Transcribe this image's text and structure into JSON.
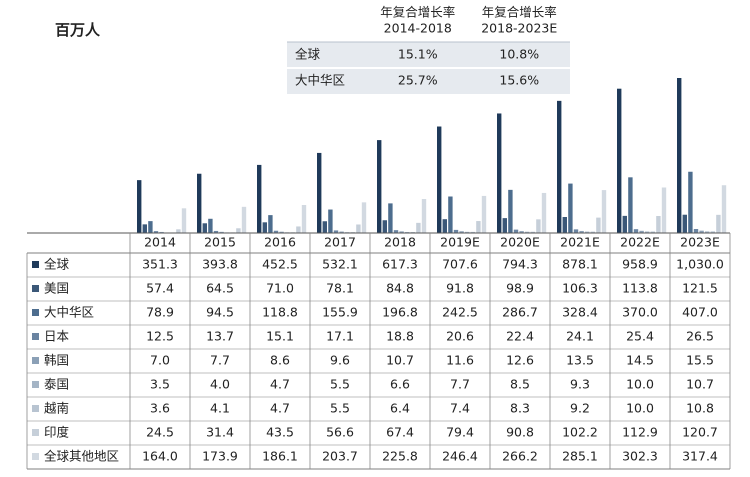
{
  "cagr_table": {
    "headers": [
      [
        "年复合增长率",
        "2014-2018"
      ],
      [
        "年复合增长率",
        "2018-2023E"
      ]
    ],
    "rows": [
      [
        "全球",
        "15.1%",
        "10.8%"
      ],
      [
        "大中华区",
        "25.7%",
        "15.6%"
      ]
    ]
  },
  "chart_data": {
    "type": "bar",
    "unit": "百万人",
    "categories": [
      "2014",
      "2015",
      "2016",
      "2017",
      "2018",
      "2019E",
      "2020E",
      "2021E",
      "2022E",
      "2023E"
    ],
    "series": [
      {
        "name": "全球",
        "color": "#1f3a5a",
        "values": [
          351.3,
          393.8,
          452.5,
          532.1,
          617.3,
          707.6,
          794.3,
          878.1,
          958.9,
          1030.0
        ],
        "value_labels": [
          "351.3",
          "393.8",
          "452.5",
          "532.1",
          "617.3",
          "707.6",
          "794.3",
          "878.1",
          "958.9",
          "1,030.0"
        ]
      },
      {
        "name": "美国",
        "color": "#3b5878",
        "values": [
          57.4,
          64.5,
          71.0,
          78.1,
          84.8,
          91.8,
          98.9,
          106.3,
          113.8,
          121.5
        ],
        "value_labels": [
          "57.4",
          "64.5",
          "71.0",
          "78.1",
          "84.8",
          "91.8",
          "98.9",
          "106.3",
          "113.8",
          "121.5"
        ]
      },
      {
        "name": "大中华区",
        "color": "#4d6d8e",
        "values": [
          78.9,
          94.5,
          118.8,
          155.9,
          196.8,
          242.5,
          286.7,
          328.4,
          370.0,
          407.0
        ],
        "value_labels": [
          "78.9",
          "94.5",
          "118.8",
          "155.9",
          "196.8",
          "242.5",
          "286.7",
          "328.4",
          "370.0",
          "407.0"
        ]
      },
      {
        "name": "日本",
        "color": "#6a84a1",
        "values": [
          12.5,
          13.7,
          15.1,
          17.1,
          18.8,
          20.6,
          22.4,
          24.1,
          25.4,
          26.5
        ],
        "value_labels": [
          "12.5",
          "13.7",
          "15.1",
          "17.1",
          "18.8",
          "20.6",
          "22.4",
          "24.1",
          "25.4",
          "26.5"
        ]
      },
      {
        "name": "韩国",
        "color": "#8ba0b6",
        "values": [
          7.0,
          7.7,
          8.6,
          9.6,
          10.7,
          11.6,
          12.6,
          13.5,
          14.5,
          15.5
        ],
        "value_labels": [
          "7.0",
          "7.7",
          "8.6",
          "9.6",
          "10.7",
          "11.6",
          "12.6",
          "13.5",
          "14.5",
          "15.5"
        ]
      },
      {
        "name": "泰国",
        "color": "#a4b4c5",
        "values": [
          3.5,
          4.0,
          4.7,
          5.5,
          6.6,
          7.7,
          8.5,
          9.3,
          10.0,
          10.7
        ],
        "value_labels": [
          "3.5",
          "4.0",
          "4.7",
          "5.5",
          "6.6",
          "7.7",
          "8.5",
          "9.3",
          "10.0",
          "10.7"
        ]
      },
      {
        "name": "越南",
        "color": "#b8c4d1",
        "values": [
          3.6,
          4.1,
          4.7,
          5.5,
          6.4,
          7.4,
          8.3,
          9.2,
          10.0,
          10.8
        ],
        "value_labels": [
          "3.6",
          "4.1",
          "4.7",
          "5.5",
          "6.4",
          "7.4",
          "8.3",
          "9.2",
          "10.0",
          "10.8"
        ]
      },
      {
        "name": "印度",
        "color": "#c6cfd9",
        "values": [
          24.5,
          31.4,
          43.5,
          56.6,
          67.4,
          79.4,
          90.8,
          102.2,
          112.9,
          120.7
        ],
        "value_labels": [
          "24.5",
          "31.4",
          "43.5",
          "56.6",
          "67.4",
          "79.4",
          "90.8",
          "102.2",
          "112.9",
          "120.7"
        ]
      },
      {
        "name": "全球其他地区",
        "color": "#d2d9e1",
        "values": [
          164.0,
          173.9,
          186.1,
          203.7,
          225.8,
          246.4,
          266.2,
          285.1,
          302.3,
          317.4
        ],
        "value_labels": [
          "164.0",
          "173.9",
          "186.1",
          "203.7",
          "225.8",
          "246.4",
          "266.2",
          "285.1",
          "302.3",
          "317.4"
        ]
      }
    ]
  }
}
